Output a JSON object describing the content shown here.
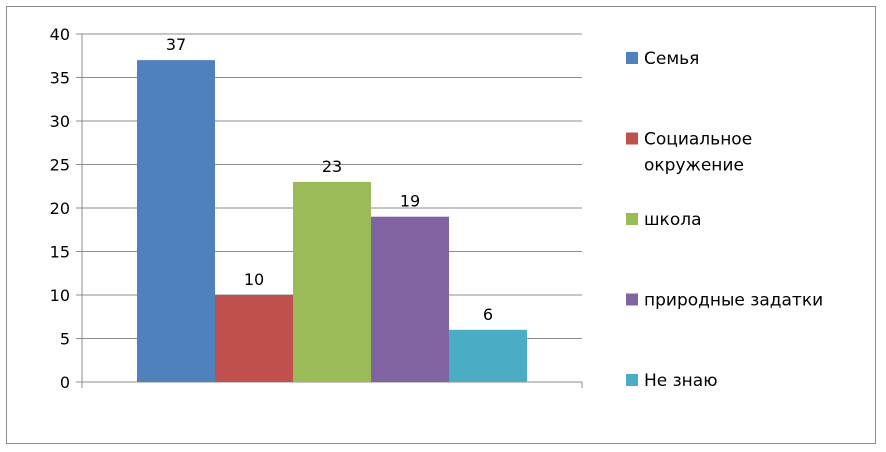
{
  "chart_data": {
    "type": "bar",
    "categories": [
      "Семья",
      "Социальное окружение",
      "школа",
      "природные задатки",
      "Не знаю"
    ],
    "values": [
      37,
      10,
      23,
      19,
      6
    ],
    "colors": [
      "#4f81bd",
      "#c0504d",
      "#9bbb59",
      "#8064a2",
      "#4bacc6"
    ],
    "data_labels": [
      "37",
      "10",
      "23",
      "19",
      "6"
    ],
    "y_ticks": [
      "0",
      "5",
      "10",
      "15",
      "20",
      "25",
      "30",
      "35",
      "40"
    ],
    "ylim": [
      0,
      40
    ],
    "grid": true,
    "legend": {
      "placement": "right",
      "entries": [
        {
          "lines": [
            "Семья"
          ]
        },
        {
          "lines": [
            "Социальное",
            "окружение"
          ]
        },
        {
          "lines": [
            "школа"
          ]
        },
        {
          "lines": [
            "природные задатки"
          ]
        },
        {
          "lines": [
            "Не знаю"
          ]
        }
      ]
    },
    "title": "",
    "xlabel": "",
    "ylabel": ""
  }
}
